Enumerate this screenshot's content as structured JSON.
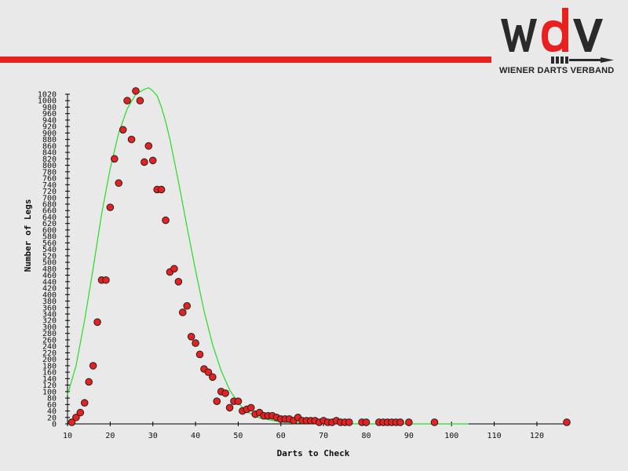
{
  "header": {
    "logo_text": "wdv",
    "logo_subtitle": "WIENER DARTS VERBAND",
    "brand_red": "#e8201f",
    "brand_dark": "#2a2a2a"
  },
  "chart_data": {
    "type": "scatter",
    "xlabel": "Darts to Check",
    "ylabel": "Number of Legs",
    "xlim": [
      10,
      127
    ],
    "ylim": [
      0,
      1020
    ],
    "x_ticks": [
      10,
      20,
      30,
      40,
      50,
      60,
      70,
      80,
      90,
      100,
      110,
      120
    ],
    "y_tick_step": 20,
    "grid": false,
    "point_color": "#e8201f",
    "curve_color": "#22dd22",
    "series": [
      {
        "type": "scatter",
        "points": [
          [
            11,
            5
          ],
          [
            12,
            20
          ],
          [
            13,
            35
          ],
          [
            14,
            65
          ],
          [
            15,
            130
          ],
          [
            16,
            180
          ],
          [
            17,
            315
          ],
          [
            18,
            445
          ],
          [
            19,
            445
          ],
          [
            20,
            670
          ],
          [
            21,
            820
          ],
          [
            22,
            745
          ],
          [
            23,
            910
          ],
          [
            24,
            1000
          ],
          [
            25,
            880
          ],
          [
            26,
            1030
          ],
          [
            27,
            1000
          ],
          [
            28,
            810
          ],
          [
            29,
            860
          ],
          [
            30,
            815
          ],
          [
            31,
            725
          ],
          [
            32,
            725
          ],
          [
            33,
            630
          ],
          [
            34,
            470
          ],
          [
            35,
            480
          ],
          [
            36,
            440
          ],
          [
            37,
            345
          ],
          [
            38,
            365
          ],
          [
            39,
            270
          ],
          [
            40,
            250
          ],
          [
            41,
            215
          ],
          [
            42,
            170
          ],
          [
            43,
            160
          ],
          [
            44,
            145
          ],
          [
            45,
            70
          ],
          [
            46,
            100
          ],
          [
            47,
            95
          ],
          [
            48,
            50
          ],
          [
            49,
            70
          ],
          [
            50,
            70
          ],
          [
            51,
            40
          ],
          [
            52,
            45
          ],
          [
            53,
            50
          ],
          [
            54,
            30
          ],
          [
            55,
            35
          ],
          [
            56,
            25
          ],
          [
            57,
            25
          ],
          [
            58,
            25
          ],
          [
            59,
            20
          ],
          [
            60,
            15
          ],
          [
            61,
            15
          ],
          [
            62,
            15
          ],
          [
            63,
            10
          ],
          [
            64,
            20
          ],
          [
            65,
            10
          ],
          [
            66,
            10
          ],
          [
            67,
            10
          ],
          [
            68,
            10
          ],
          [
            69,
            5
          ],
          [
            70,
            10
          ],
          [
            71,
            5
          ],
          [
            72,
            5
          ],
          [
            73,
            10
          ],
          [
            74,
            5
          ],
          [
            75,
            5
          ],
          [
            76,
            5
          ],
          [
            79,
            5
          ],
          [
            80,
            5
          ],
          [
            83,
            5
          ],
          [
            84,
            5
          ],
          [
            85,
            5
          ],
          [
            86,
            5
          ],
          [
            87,
            5
          ],
          [
            88,
            5
          ],
          [
            90,
            5
          ],
          [
            96,
            5
          ],
          [
            127,
            5
          ]
        ]
      },
      {
        "type": "line",
        "points": [
          [
            10,
            90
          ],
          [
            12,
            180
          ],
          [
            14,
            320
          ],
          [
            16,
            480
          ],
          [
            18,
            650
          ],
          [
            20,
            790
          ],
          [
            22,
            900
          ],
          [
            24,
            975
          ],
          [
            26,
            1020
          ],
          [
            28,
            1035
          ],
          [
            29,
            1040
          ],
          [
            30,
            1030
          ],
          [
            31,
            1015
          ],
          [
            32,
            980
          ],
          [
            33,
            935
          ],
          [
            34,
            880
          ],
          [
            36,
            750
          ],
          [
            38,
            610
          ],
          [
            40,
            475
          ],
          [
            42,
            350
          ],
          [
            44,
            245
          ],
          [
            46,
            165
          ],
          [
            48,
            105
          ],
          [
            50,
            65
          ],
          [
            52,
            38
          ],
          [
            55,
            18
          ],
          [
            60,
            6
          ],
          [
            65,
            2
          ],
          [
            70,
            1
          ],
          [
            80,
            0
          ],
          [
            90,
            0
          ],
          [
            104,
            0
          ]
        ]
      }
    ]
  }
}
